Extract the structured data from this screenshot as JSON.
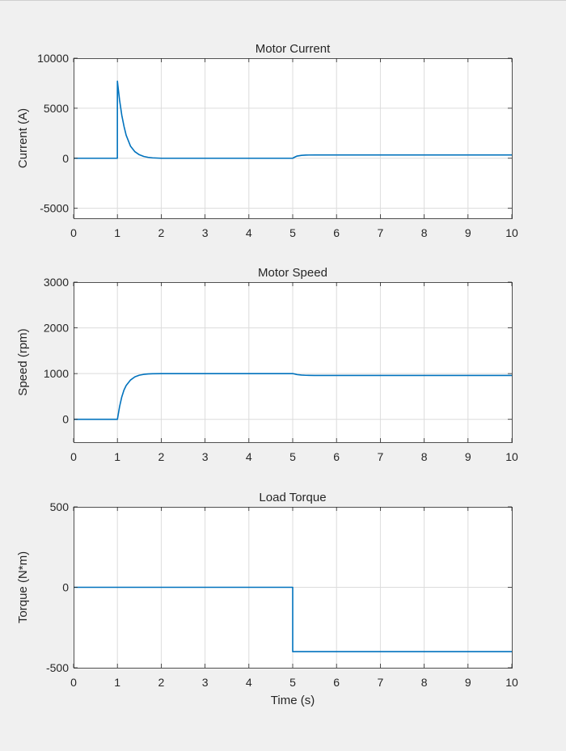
{
  "colors": {
    "background": "#f0f0f0",
    "plot_area": "#ffffff",
    "series": "#0072bd",
    "grid": "#dcdcdc",
    "axis": "#262626"
  },
  "chart_data": [
    {
      "type": "line",
      "title": "Motor Current",
      "xlabel": "",
      "ylabel": "Current (A)",
      "xlim": [
        0,
        10
      ],
      "ylim": [
        -6000,
        10000
      ],
      "xticks": [
        0,
        1,
        2,
        3,
        4,
        5,
        6,
        7,
        8,
        9,
        10
      ],
      "yticks": [
        -5000,
        0,
        5000,
        10000
      ],
      "grid": true,
      "series": [
        {
          "x": [
            0,
            0.999,
            1.0,
            1.01,
            1.05,
            1.1,
            1.15,
            1.2,
            1.3,
            1.4,
            1.5,
            1.6,
            1.7,
            1.8,
            2.0,
            5.0,
            5.05,
            5.1,
            5.2,
            5.3,
            5.5,
            10
          ],
          "y": [
            0,
            0,
            7700,
            7300,
            5800,
            4300,
            3200,
            2300,
            1200,
            650,
            350,
            180,
            90,
            40,
            0,
            0,
            120,
            220,
            290,
            320,
            330,
            330
          ]
        }
      ]
    },
    {
      "type": "line",
      "title": "Motor Speed",
      "xlabel": "",
      "ylabel": "Speed (rpm)",
      "xlim": [
        0,
        10
      ],
      "ylim": [
        -500,
        3000
      ],
      "xticks": [
        0,
        1,
        2,
        3,
        4,
        5,
        6,
        7,
        8,
        9,
        10
      ],
      "yticks": [
        0,
        1000,
        2000,
        3000
      ],
      "grid": true,
      "series": [
        {
          "x": [
            0,
            1.0,
            1.05,
            1.1,
            1.15,
            1.2,
            1.3,
            1.4,
            1.5,
            1.6,
            1.7,
            1.8,
            2.0,
            5.0,
            5.05,
            5.1,
            5.2,
            5.3,
            5.5,
            10
          ],
          "y": [
            0,
            0,
            280,
            490,
            640,
            740,
            860,
            930,
            965,
            983,
            992,
            997,
            1000,
            1000,
            990,
            978,
            968,
            963,
            960,
            960
          ]
        }
      ]
    },
    {
      "type": "line",
      "title": "Load Torque",
      "xlabel": "Time (s)",
      "ylabel": "Torque (N*m)",
      "xlim": [
        0,
        10
      ],
      "ylim": [
        -500,
        500
      ],
      "xticks": [
        0,
        1,
        2,
        3,
        4,
        5,
        6,
        7,
        8,
        9,
        10
      ],
      "yticks": [
        -500,
        0,
        500
      ],
      "grid": true,
      "series": [
        {
          "x": [
            0,
            5.0,
            5.0,
            10
          ],
          "y": [
            0,
            0,
            -400,
            -400
          ]
        }
      ]
    }
  ]
}
